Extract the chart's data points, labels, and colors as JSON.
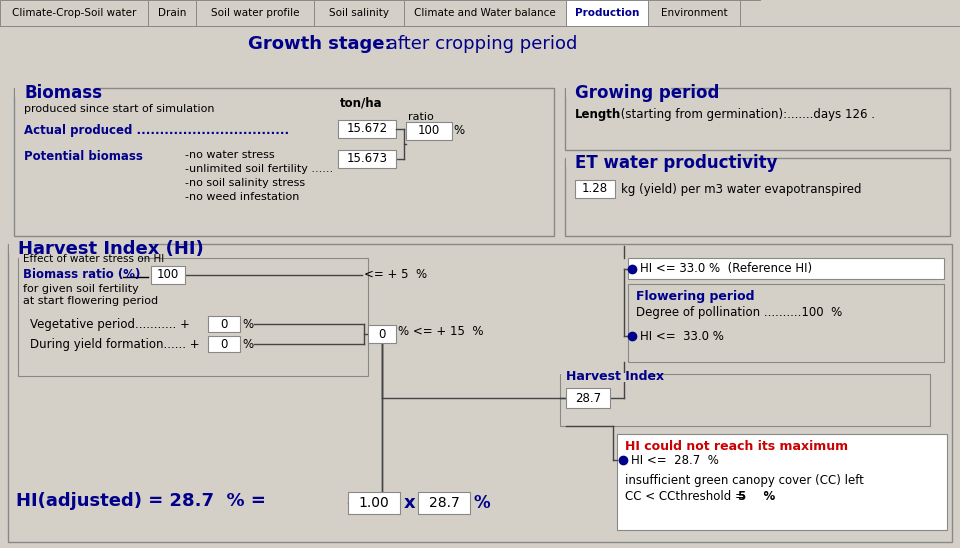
{
  "bg_color": "#d4d0c8",
  "white": "#ffffff",
  "dark_blue": "#00008B",
  "red": "#CC0000",
  "black": "#000000",
  "tab_names": [
    "Climate-Crop-Soil water",
    "Drain",
    "Soil water profile",
    "Soil salinity",
    "Climate and Water balance",
    "Production",
    "Environment"
  ],
  "active_tab": "Production",
  "tab_widths": [
    148,
    48,
    118,
    90,
    162,
    82,
    92
  ],
  "growth_stage_label": "Growth stage:",
  "growth_stage_value": " after cropping period",
  "biomass_title": "Biomass",
  "biomass_subtitle": "produced since start of simulation",
  "ton_ha_label": "ton/ha",
  "actual_produced_label": "Actual produced .................................",
  "actual_produced_value": "15.672",
  "ratio_label": "ratio",
  "ratio_value": "100",
  "potential_biomass_label": "Potential biomass",
  "potential_lines": [
    "-no water stress",
    "-unlimited soil fertility ......",
    "-no soil salinity stress",
    "-no weed infestation"
  ],
  "potential_value": "15.673",
  "growing_period_title": "Growing period",
  "growing_period_bold": "Length",
  "growing_period_rest": " (starting from germination):.......days 126 .",
  "et_wp_title": "ET water productivity",
  "et_wp_value": "1.28",
  "et_wp_unit": "kg (yield) per m3 water evapotranspired",
  "hi_title": "Harvest Index (HI)",
  "water_stress_title": "Effect of water stress on HI",
  "biomass_ratio_label": "Biomass ratio (%)",
  "biomass_ratio_line2": "for given soil fertility",
  "biomass_ratio_line3": "at start flowering period",
  "biomass_ratio_value": "100",
  "veg_period_label": "Vegetative period...........",
  "veg_period_value": "0",
  "during_yield_label": "During yield formation......",
  "during_yield_value": "0",
  "arrow_text1": "<= + 5  %",
  "middle_box_value": "0",
  "arrow_text2": "% <= + 15  %",
  "hi_ref_text": "HI <= 33.0 %  (Reference HI)",
  "flowering_title": "Flowering period",
  "pollination_text": "Degree of pollination ..........100  %",
  "hi_flower_text": "HI <=  33.0 %",
  "harvest_index_title": "Harvest Index",
  "harvest_index_value": "28.7",
  "hi_warning_title": "HI could not reach its maximum",
  "hi_warning_line2": "HI <=  28.7  %",
  "hi_warning_line3": "insufficient green canopy cover (CC) left",
  "hi_warning_line4_pre": "CC < CCthreshold = ",
  "hi_warning_line4_bold": "5",
  "hi_warning_line4_pct": "    %",
  "hi_adjusted_label": "HI(adjusted) = 28.7  % =",
  "hi_adj_val1": "1.00",
  "hi_adj_val2": "28.7",
  "hi_adj_unit": "%"
}
